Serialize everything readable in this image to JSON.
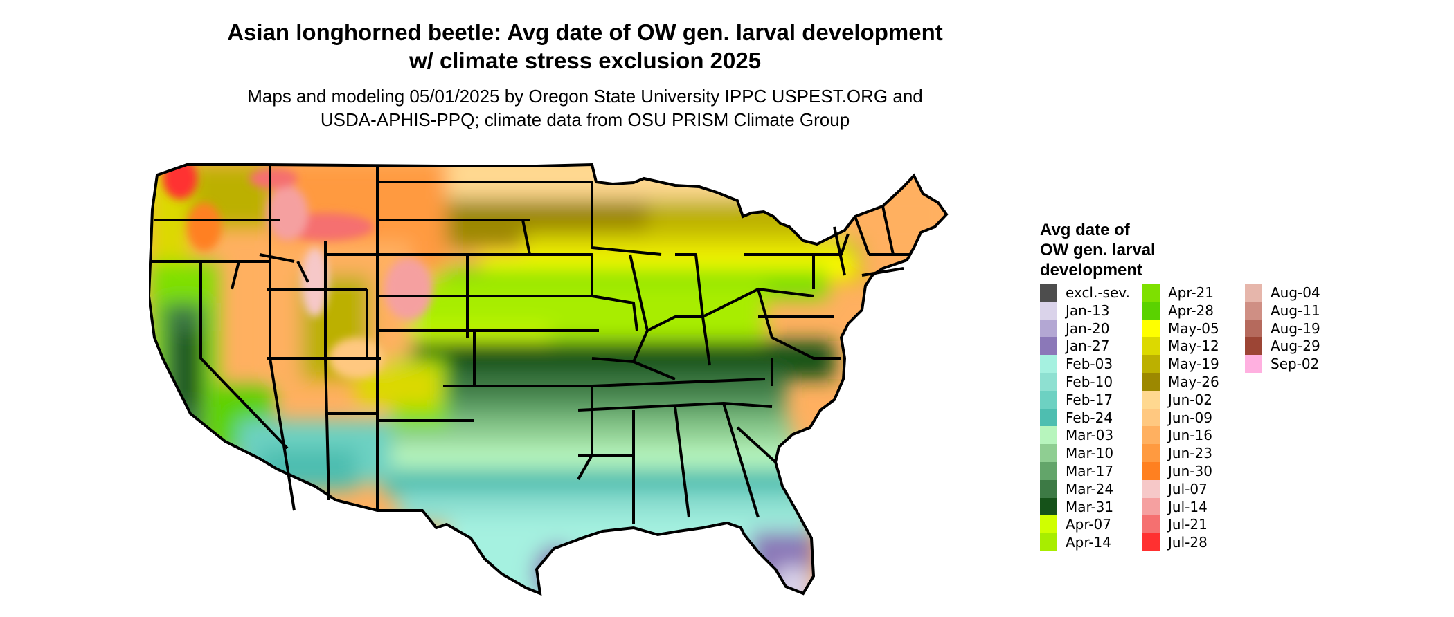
{
  "title_line1": "Asian longhorned beetle: Avg date of OW gen. larval development",
  "title_line2": "w/ climate stress exclusion 2025",
  "subtitle_line1": "Maps and modeling 05/01/2025 by Oregon State University IPPC USPEST.ORG and",
  "subtitle_line2": "USDA-APHIS-PPQ; climate data from OSU PRISM Climate Group",
  "map": {
    "region": "Contiguous United States",
    "state_borders": true,
    "land_outside_color": "#ffffff"
  },
  "legend": {
    "title_line1": "Avg date of",
    "title_line2": "OW gen. larval",
    "title_line3": "development",
    "items": [
      {
        "label": "excl.-sev.",
        "color": "#4d4d4d"
      },
      {
        "label": "Jan-13",
        "color": "#dad3ea"
      },
      {
        "label": "Jan-20",
        "color": "#b3a7d3"
      },
      {
        "label": "Jan-27",
        "color": "#8b78b8"
      },
      {
        "label": "Feb-03",
        "color": "#a5f1e0"
      },
      {
        "label": "Feb-10",
        "color": "#8ee0d1"
      },
      {
        "label": "Feb-17",
        "color": "#6dd1c2"
      },
      {
        "label": "Feb-24",
        "color": "#4ebeb0"
      },
      {
        "label": "Mar-03",
        "color": "#b7f5bd"
      },
      {
        "label": "Mar-10",
        "color": "#8fce92"
      },
      {
        "label": "Mar-17",
        "color": "#63a56a"
      },
      {
        "label": "Mar-24",
        "color": "#3d7a45"
      },
      {
        "label": "Mar-31",
        "color": "#155219"
      },
      {
        "label": "Apr-07",
        "color": "#d0ff00"
      },
      {
        "label": "Apr-14",
        "color": "#a8ed00"
      },
      {
        "label": "Apr-21",
        "color": "#7ee000"
      },
      {
        "label": "Apr-28",
        "color": "#5ad200"
      },
      {
        "label": "May-05",
        "color": "#ffff00"
      },
      {
        "label": "May-12",
        "color": "#dcd900"
      },
      {
        "label": "May-19",
        "color": "#bcb000"
      },
      {
        "label": "May-26",
        "color": "#9c8800"
      },
      {
        "label": "Jun-02",
        "color": "#ffd890"
      },
      {
        "label": "Jun-09",
        "color": "#ffc880"
      },
      {
        "label": "Jun-16",
        "color": "#ffb060"
      },
      {
        "label": "Jun-23",
        "color": "#ff9a40"
      },
      {
        "label": "Jun-30",
        "color": "#ff8020"
      },
      {
        "label": "Jul-07",
        "color": "#f6c8c8"
      },
      {
        "label": "Jul-14",
        "color": "#f5a0a0"
      },
      {
        "label": "Jul-21",
        "color": "#f57070"
      },
      {
        "label": "Jul-28",
        "color": "#ff3030"
      },
      {
        "label": "Aug-04",
        "color": "#e6b6ab"
      },
      {
        "label": "Aug-11",
        "color": "#cf8f84"
      },
      {
        "label": "Aug-19",
        "color": "#b56a5d"
      },
      {
        "label": "Aug-29",
        "color": "#9c4535"
      },
      {
        "label": "Sep-02",
        "color": "#ffb0e0"
      }
    ]
  }
}
